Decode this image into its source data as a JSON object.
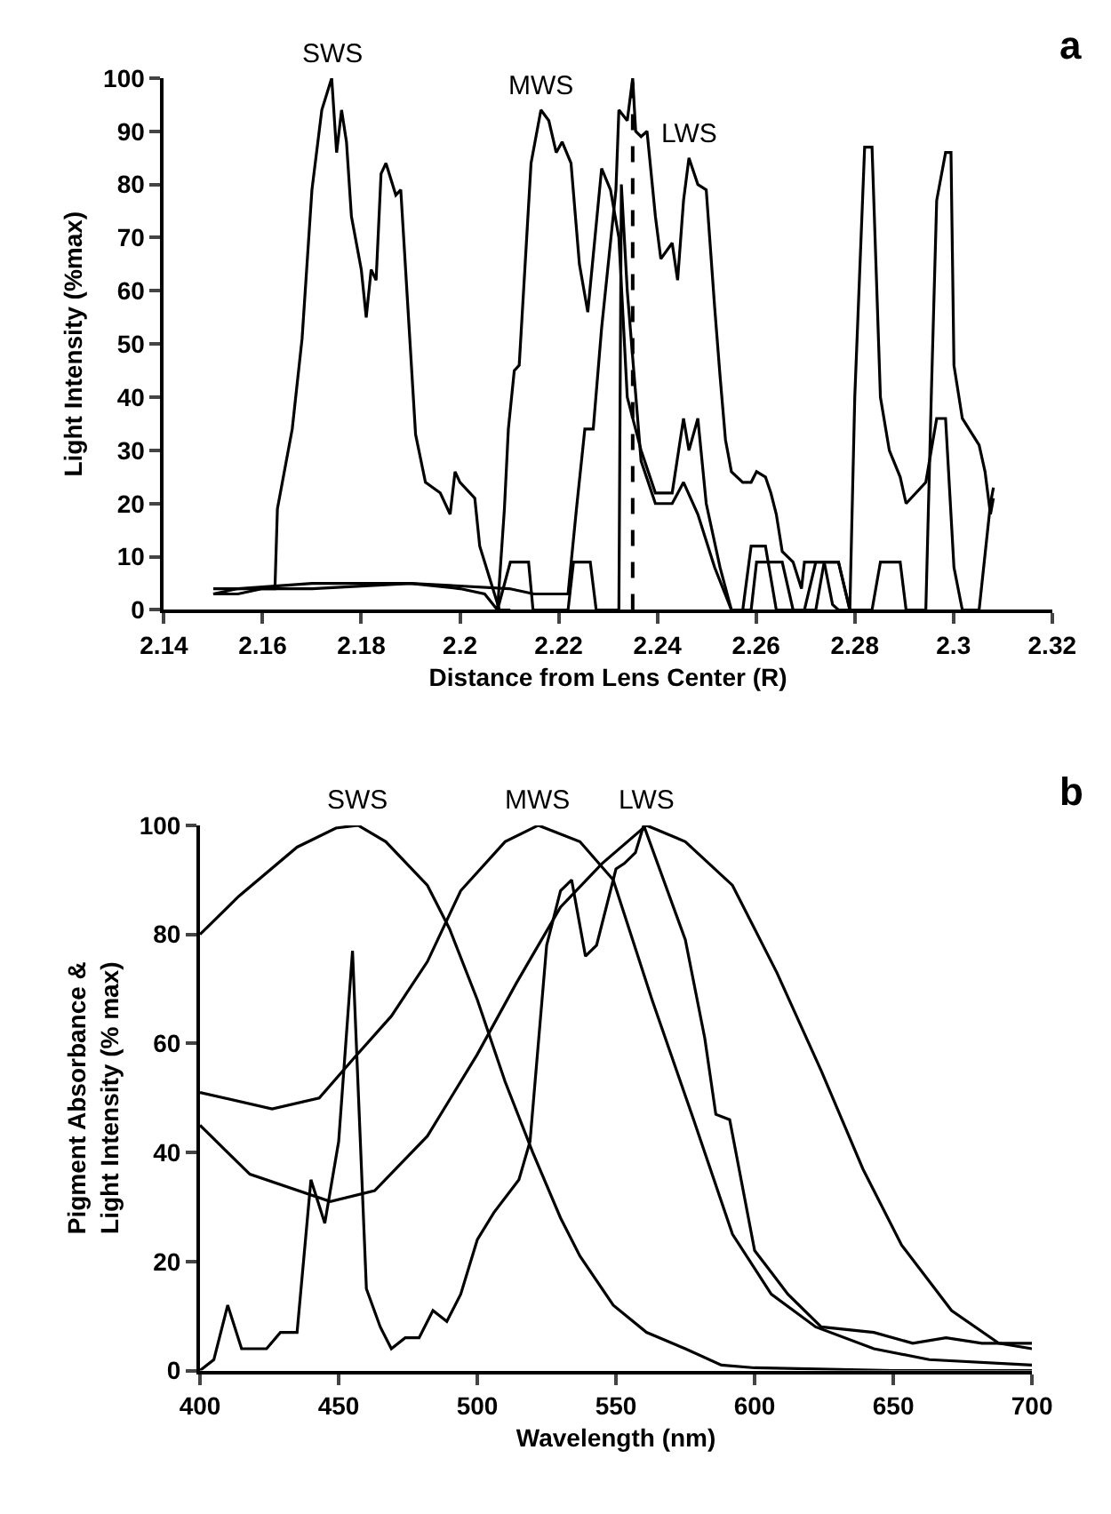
{
  "chart_data": [
    {
      "type": "line",
      "title": "a",
      "xlabel": "Distance from Lens Center (R)",
      "ylabel": "Light Intensity (%max)",
      "xlim": [
        2.14,
        2.32
      ],
      "xticks": [
        2.14,
        2.16,
        2.18,
        2.2,
        2.22,
        2.24,
        2.26,
        2.28,
        2.3,
        2.32
      ],
      "ylim": [
        0,
        100
      ],
      "yticks": [
        0,
        10,
        20,
        30,
        40,
        50,
        60,
        70,
        80,
        90,
        100
      ],
      "marker": "none",
      "line_style": "solid",
      "ref_lines": [
        {
          "axis": "x",
          "value": 2.235,
          "line_style": "dashed",
          "color": "#000000"
        }
      ],
      "annotations": [
        {
          "text": "SWS",
          "x": 2.174,
          "y": 100
        },
        {
          "text": "MWS",
          "x": 2.2164,
          "y": 94
        },
        {
          "text": "LWS",
          "x": 2.2464,
          "y": 85
        }
      ],
      "series": [
        {
          "color": "#000000",
          "x": [
            2.15,
            2.155,
            2.16,
            2.1625,
            2.163,
            2.166,
            2.168,
            2.17,
            2.172,
            2.174,
            2.175,
            2.176,
            2.177,
            2.178,
            2.18,
            2.181,
            2.182,
            2.183,
            2.184,
            2.185,
            2.187,
            2.188,
            2.191,
            2.193,
            2.196,
            2.198,
            2.199,
            2.2,
            2.203,
            2.204,
            2.208,
            2.2102
          ],
          "values": [
            3,
            3,
            4,
            4,
            19,
            34,
            51,
            79,
            94,
            100,
            86,
            94,
            88,
            74,
            64,
            55,
            64,
            62,
            82,
            84,
            78,
            79,
            33,
            24,
            22,
            18,
            26,
            24,
            21,
            12,
            0,
            0
          ]
        },
        {
          "color": "#000000",
          "x": [
            2.15,
            2.17,
            2.19,
            2.2,
            2.205,
            2.2076,
            2.209,
            2.2098,
            2.211,
            2.212,
            2.2144,
            2.2164,
            2.218,
            2.2195,
            2.2207,
            2.2225,
            2.2242,
            2.2259,
            2.2287,
            2.2305,
            2.2322,
            2.2339,
            2.2367,
            2.2396,
            2.243,
            2.2453,
            2.2464,
            2.2482,
            2.2499,
            2.2527,
            2.255,
            2.259,
            2.2601,
            2.2653,
            2.2675,
            2.2721,
            2.2738,
            2.2767,
            2.279
          ],
          "values": [
            4,
            4,
            5,
            4,
            3,
            0,
            19,
            34,
            45,
            46,
            84,
            94,
            92,
            86,
            88,
            84,
            65,
            56,
            83,
            79,
            70,
            40,
            30,
            22,
            22,
            36,
            30,
            36,
            20,
            8,
            0,
            0,
            9,
            9,
            0,
            0,
            9,
            9,
            0
          ]
        },
        {
          "color": "#000000",
          "x": [
            2.2076,
            2.2102,
            2.2139,
            2.2148,
            2.2219,
            2.223,
            2.2264,
            2.2276,
            2.2322,
            2.2327,
            2.2339,
            2.2367,
            2.2396,
            2.243,
            2.2453,
            2.2482,
            2.2516,
            2.255,
            2.2573,
            2.259,
            2.2619,
            2.2641,
            2.2698,
            2.2721,
            2.2767,
            2.279,
            2.28,
            2.282,
            2.2835,
            2.2852,
            2.287,
            2.2892,
            2.2904,
            2.2944,
            2.2966,
            2.2984,
            2.3001,
            2.3018,
            2.3052,
            2.3075,
            2.3081
          ],
          "values": [
            0,
            9,
            9,
            0,
            0,
            9,
            9,
            0,
            0,
            80,
            60,
            28,
            20,
            20,
            24,
            18,
            8,
            0,
            0,
            12,
            12,
            0,
            0,
            9,
            9,
            0,
            40,
            87,
            87,
            40,
            30,
            25,
            20,
            24,
            36,
            36,
            8,
            0,
            0,
            20,
            23
          ]
        },
        {
          "color": "#000000",
          "x": [
            2.15,
            2.155,
            2.17,
            2.19,
            2.21,
            2.215,
            2.2219,
            2.2236,
            2.2253,
            2.227,
            2.2287,
            2.2316,
            2.2322,
            2.2339,
            2.235,
            2.2356,
            2.2367,
            2.2379,
            2.2396,
            2.2407,
            2.243,
            2.2441,
            2.2453,
            2.2464,
            2.2482,
            2.2499,
            2.2516,
            2.2527,
            2.2538,
            2.255,
            2.2573,
            2.259,
            2.2601,
            2.2619,
            2.263,
            2.2641,
            2.2653,
            2.2675,
            2.2692,
            2.2698,
            2.2721,
            2.2738,
            2.2755,
            2.2767,
            2.279,
            2.2835,
            2.2852,
            2.2892,
            2.2904,
            2.2944,
            2.2955,
            2.2966,
            2.2984,
            2.2995,
            2.3001,
            2.3018,
            2.3052,
            2.3064,
            2.3075,
            2.3081
          ],
          "values": [
            3,
            4,
            5,
            5,
            4,
            3,
            3,
            19,
            34,
            34,
            53,
            79,
            94,
            92,
            100,
            90,
            89,
            90,
            74,
            66,
            69,
            62,
            77,
            85,
            80,
            79,
            57,
            44,
            32,
            26,
            24,
            24,
            26,
            25,
            22,
            18,
            11,
            9,
            4,
            9,
            9,
            9,
            1,
            0,
            0,
            0,
            9,
            9,
            0,
            0,
            40,
            77,
            86,
            86,
            46,
            36,
            31,
            26,
            18,
            21
          ]
        }
      ]
    },
    {
      "type": "line",
      "title": "b",
      "xlabel": "Wavelength (nm)",
      "ylabel": "Pigment Absorbance &\nLight Intensity (% max)",
      "xlim": [
        400,
        700
      ],
      "xticks": [
        400,
        450,
        500,
        550,
        600,
        650,
        700
      ],
      "ylim": [
        0,
        100
      ],
      "yticks": [
        0,
        20,
        40,
        60,
        80,
        100
      ],
      "marker": "none",
      "line_style": "solid",
      "annotations": [
        {
          "text": "SWS",
          "x": 457,
          "y": 100
        },
        {
          "text": "MWS",
          "x": 522,
          "y": 100
        },
        {
          "text": "LWS",
          "x": 561,
          "y": 100
        }
      ],
      "series": [
        {
          "color": "#000000",
          "x": [
            400,
            414,
            435,
            449,
            457,
            467,
            482,
            490,
            500,
            510,
            520,
            530,
            537,
            549,
            561,
            575,
            588,
            600,
            650,
            700
          ],
          "values": [
            80,
            87,
            96,
            99.5,
            100,
            97,
            89,
            81,
            68,
            53,
            40,
            28,
            21,
            12,
            7,
            4,
            1,
            0.5,
            0,
            0
          ]
        },
        {
          "color": "#000000",
          "x": [
            400,
            426,
            443,
            455,
            469,
            482,
            494,
            510,
            522,
            537,
            549,
            563,
            578,
            592,
            606,
            622,
            643,
            663,
            700
          ],
          "values": [
            51,
            48,
            50,
            57,
            65,
            75,
            88,
            97,
            100,
            97,
            90,
            68,
            46,
            25,
            14,
            8,
            4,
            2,
            1
          ]
        },
        {
          "color": "#000000",
          "x": [
            400,
            418,
            447,
            463,
            482,
            500,
            514,
            530,
            545,
            561,
            575,
            592,
            608,
            624,
            639,
            653,
            671,
            688,
            700
          ],
          "values": [
            45,
            36,
            31,
            33,
            43,
            58,
            71,
            85,
            93,
            100,
            97,
            89,
            73,
            55,
            37,
            23,
            11,
            5,
            4
          ]
        },
        {
          "color": "#000000",
          "x": [
            400,
            405,
            410,
            415,
            424,
            429,
            435,
            440,
            445,
            450,
            455,
            460,
            465,
            469,
            474,
            479,
            484,
            489,
            494,
            500,
            506,
            515,
            519,
            525,
            530,
            534,
            539,
            543,
            550,
            553,
            557,
            560,
            575,
            582,
            586,
            591,
            600,
            606,
            612,
            624,
            643,
            657,
            669,
            682,
            700
          ],
          "values": [
            0,
            2,
            12,
            4,
            4,
            7,
            7,
            35,
            27,
            42,
            77,
            15,
            8,
            4,
            6,
            6,
            11,
            9,
            14,
            24,
            29,
            35,
            42,
            78,
            88,
            90,
            76,
            78,
            92,
            93,
            95,
            100,
            79,
            61,
            47,
            46,
            22,
            18,
            14,
            8,
            7,
            5,
            6,
            5,
            5
          ]
        }
      ]
    }
  ]
}
